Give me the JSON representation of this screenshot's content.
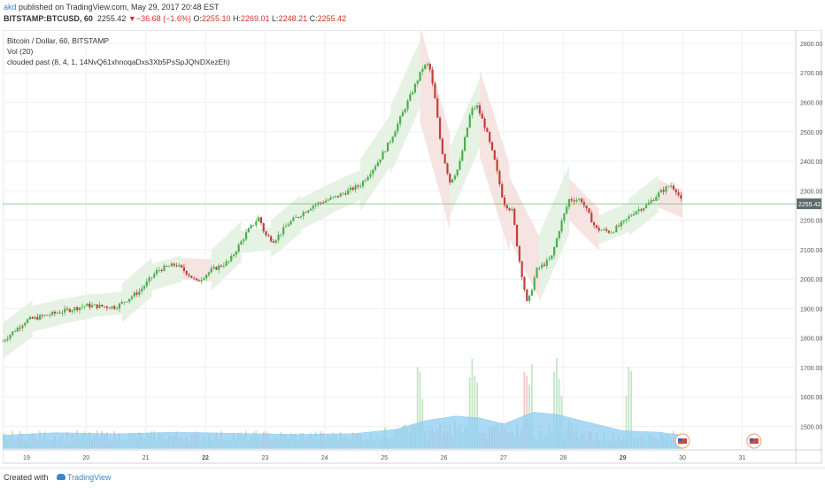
{
  "header": {
    "author": "akd",
    "published": "published on TradingView.com, May 29, 2017 20:48 EST",
    "symbol": "BITSTAMP:BTCUSD, 60",
    "last": "2255.42",
    "change_arrow": "▼",
    "change": "−36.68 (−1.6%)",
    "o_label": "O:",
    "o": "2255.10",
    "h_label": "H:",
    "h": "2269.01",
    "l_label": "L:",
    "l": "2248.21",
    "c_label": "C:",
    "c": "2255.42"
  },
  "legend": {
    "title": "Bitcoin / Dollar, 60, BITSTAMP",
    "vol": "Vol (20)",
    "indicator": "clouded past (8, 4, 1, 14NvQ61xhnoqaDxs3Xb5PsSpJQhiDXezEh)"
  },
  "last_price_label": "2255.42",
  "colors": {
    "up": "#4caf50",
    "down": "#c1403b",
    "cloud_up": "#e6f2e4",
    "cloud_down": "#f6e4e2",
    "volume_ma": "#8ecdf3",
    "author": "#3a86c8"
  },
  "footer": {
    "created_with": "Created with",
    "brand": "TradingView",
    "icon": "tradingview-logo-icon"
  },
  "chart_data": {
    "type": "candlestick",
    "title": "Bitcoin / Dollar, 60, BITSTAMP",
    "y_ticks": [
      "2800.00",
      "2700.00",
      "2600.00",
      "2500.00",
      "2400.00",
      "2300.00",
      "2200.00",
      "2100.00",
      "2000.00",
      "1900.00",
      "1800.00",
      "1700.00",
      "1600.00",
      "1500.00"
    ],
    "x_ticks": [
      "19",
      "20",
      "21",
      "22",
      "23",
      "24",
      "25",
      "26",
      "27",
      "28",
      "29",
      "30",
      "31"
    ],
    "ylim": [
      1420,
      2845
    ],
    "x_range_days": [
      18.6,
      31.9
    ],
    "price_path": [
      [
        18.6,
        1790
      ],
      [
        19.0,
        1860
      ],
      [
        19.5,
        1885
      ],
      [
        20.0,
        1910
      ],
      [
        20.5,
        1905
      ],
      [
        20.9,
        1960
      ],
      [
        21.2,
        2030
      ],
      [
        21.5,
        2050
      ],
      [
        21.7,
        2020
      ],
      [
        21.85,
        1990
      ],
      [
        22.1,
        2030
      ],
      [
        22.4,
        2060
      ],
      [
        22.7,
        2160
      ],
      [
        22.9,
        2210
      ],
      [
        23.0,
        2150
      ],
      [
        23.15,
        2130
      ],
      [
        23.4,
        2190
      ],
      [
        23.8,
        2250
      ],
      [
        24.2,
        2280
      ],
      [
        24.6,
        2320
      ],
      [
        24.9,
        2400
      ],
      [
        25.1,
        2470
      ],
      [
        25.3,
        2560
      ],
      [
        25.5,
        2650
      ],
      [
        25.65,
        2720
      ],
      [
        25.75,
        2730
      ],
      [
        25.85,
        2610
      ],
      [
        25.95,
        2450
      ],
      [
        26.1,
        2330
      ],
      [
        26.25,
        2380
      ],
      [
        26.45,
        2570
      ],
      [
        26.55,
        2590
      ],
      [
        26.7,
        2510
      ],
      [
        26.85,
        2400
      ],
      [
        27.0,
        2260
      ],
      [
        27.15,
        2230
      ],
      [
        27.25,
        2080
      ],
      [
        27.4,
        1910
      ],
      [
        27.55,
        2030
      ],
      [
        27.8,
        2070
      ],
      [
        27.95,
        2180
      ],
      [
        28.1,
        2270
      ],
      [
        28.3,
        2270
      ],
      [
        28.55,
        2170
      ],
      [
        28.8,
        2160
      ],
      [
        29.0,
        2190
      ],
      [
        29.2,
        2230
      ],
      [
        29.4,
        2250
      ],
      [
        29.6,
        2290
      ],
      [
        29.8,
        2320
      ],
      [
        29.9,
        2300
      ],
      [
        30.0,
        2255
      ]
    ],
    "volume_ma": [
      [
        18.6,
        1470
      ],
      [
        19.5,
        1478
      ],
      [
        20.5,
        1474
      ],
      [
        21.5,
        1480
      ],
      [
        22.5,
        1476
      ],
      [
        23.5,
        1472
      ],
      [
        24.5,
        1475
      ],
      [
        25.2,
        1490
      ],
      [
        25.7,
        1520
      ],
      [
        26.2,
        1535
      ],
      [
        26.6,
        1528
      ],
      [
        27.0,
        1508
      ],
      [
        27.5,
        1548
      ],
      [
        27.9,
        1540
      ],
      [
        28.3,
        1520
      ],
      [
        29.0,
        1485
      ],
      [
        29.6,
        1480
      ],
      [
        30.0,
        1470
      ]
    ],
    "date_marker_days": [
      30.0,
      31.2
    ]
  }
}
